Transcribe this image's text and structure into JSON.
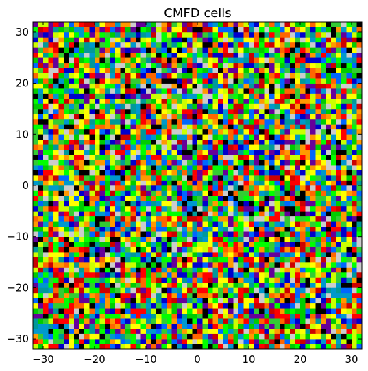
{
  "chart_data": {
    "type": "heatmap",
    "title": "CMFD cells",
    "xlabel": "",
    "ylabel": "",
    "xlim": [
      -32,
      32
    ],
    "ylim": [
      -32,
      32
    ],
    "grid": false,
    "xticks": [
      -30,
      -20,
      -10,
      0,
      10,
      20,
      30
    ],
    "yticks": [
      -30,
      -20,
      -10,
      0,
      10,
      20,
      30
    ],
    "xtick_labels": [
      "−30",
      "−20",
      "−10",
      "0",
      "10",
      "20",
      "30"
    ],
    "ytick_labels": [
      "−30",
      "−20",
      "−10",
      "0",
      "10",
      "20",
      "30"
    ],
    "cells": {
      "nx": 64,
      "ny": 64,
      "cell_size": 1
    },
    "palette": [
      "#ff0000",
      "#00ff00",
      "#0000cc",
      "#ffff00",
      "#ff9900",
      "#009999",
      "#00cc00",
      "#ccff00",
      "#0099cc",
      "#660099",
      "#cc0000",
      "#cccccc",
      "#000000",
      "#0066ff",
      "#ff6600",
      "#33cc33"
    ],
    "color_seed": 20240517
  }
}
